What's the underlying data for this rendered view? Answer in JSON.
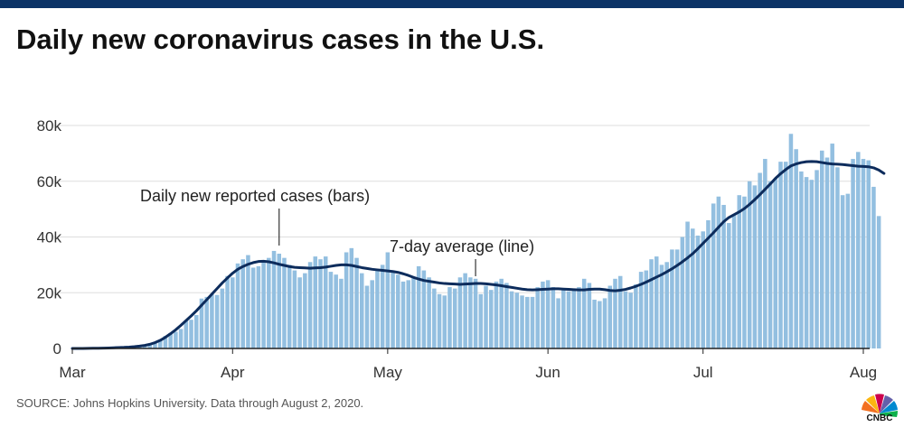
{
  "colors": {
    "brand_bar": "#0b3366",
    "bar": "#93bfe0",
    "line": "#0d2c5c",
    "grid": "#dddddd",
    "axis": "#222222"
  },
  "header": {
    "title": "Daily new coronavirus cases in the U.S."
  },
  "footer": {
    "source": "SOURCE: Johns Hopkins University. Data through August 2, 2020.",
    "logo_text": "CNBC"
  },
  "chart_data": {
    "type": "bar",
    "title": "Daily new coronavirus cases in the U.S.",
    "xlabel": "",
    "ylabel": "",
    "ylim": [
      0,
      80000
    ],
    "y_ticks": [
      0,
      20000,
      40000,
      60000,
      80000
    ],
    "y_tick_labels": [
      "0",
      "20k",
      "40k",
      "60k",
      "80k"
    ],
    "x_tick_labels": [
      {
        "label": "Mar",
        "day_index": 0
      },
      {
        "label": "Apr",
        "day_index": 31
      },
      {
        "label": "May",
        "day_index": 61
      },
      {
        "label": "Jun",
        "day_index": 92
      },
      {
        "label": "Jul",
        "day_index": 122
      },
      {
        "label": "Aug",
        "day_index": 153
      }
    ],
    "start_date": "2020-03-01",
    "end_date": "2020-08-02",
    "grid": true,
    "series": [
      {
        "name": "Daily new reported cases",
        "type": "bar",
        "start_day_index": 0,
        "values": [
          0,
          0,
          100,
          100,
          100,
          100,
          200,
          200,
          300,
          400,
          400,
          500,
          700,
          900,
          1200,
          1500,
          2200,
          2900,
          4500,
          5500,
          6000,
          7000,
          10000,
          10300,
          12000,
          17900,
          18500,
          19500,
          19200,
          21500,
          26000,
          25500,
          30500,
          32000,
          33500,
          29000,
          29500,
          31000,
          32500,
          35000,
          34000,
          32500,
          30000,
          28000,
          25500,
          27000,
          31000,
          33000,
          32000,
          33000,
          27500,
          26500,
          25000,
          34500,
          36000,
          32500,
          27000,
          22500,
          24500,
          28500,
          30000,
          34500,
          28000,
          26500,
          24000,
          24500,
          25500,
          29500,
          28000,
          25500,
          21500,
          19500,
          19000,
          22000,
          21500,
          25500,
          27000,
          25500,
          25000,
          19500,
          22500,
          21000,
          24000,
          25000,
          23500,
          20500,
          20000,
          19000,
          18500,
          18500,
          22000,
          24000,
          24500,
          22000,
          18000,
          21500,
          20500,
          21500,
          22000,
          25000,
          23500,
          17500,
          17000,
          18000,
          22500,
          25000,
          26000,
          20500,
          20000,
          23000,
          27500,
          28000,
          32000,
          33000,
          30000,
          31000,
          35500,
          35500,
          40000,
          45500,
          43000,
          40500,
          42000,
          46000,
          52000,
          54500,
          51500,
          45000,
          48000,
          55000,
          54500,
          60000,
          58500,
          63000,
          68000,
          60000,
          61000,
          67000,
          67000,
          77000,
          71500,
          63500,
          61500,
          60500,
          64000,
          71000,
          68500,
          73500,
          65000,
          55000,
          55500,
          68000,
          70500,
          68000,
          67500,
          58000,
          47500
        ]
      },
      {
        "name": "7-day average",
        "type": "line",
        "start_day_index": 0,
        "values": [
          0,
          0,
          20,
          40,
          70,
          100,
          130,
          180,
          250,
          320,
          390,
          500,
          650,
          850,
          1100,
          1500,
          2100,
          2900,
          4000,
          5300,
          6700,
          8300,
          10000,
          11700,
          13500,
          15500,
          17500,
          19500,
          21500,
          23500,
          25300,
          27000,
          28400,
          29400,
          30200,
          30800,
          31200,
          31300,
          31100,
          30700,
          30200,
          29800,
          29400,
          29100,
          29000,
          28900,
          28800,
          28900,
          29000,
          29200,
          29500,
          29800,
          30000,
          30000,
          29800,
          29400,
          29000,
          28700,
          28400,
          28200,
          28000,
          27800,
          27600,
          27300,
          26800,
          26200,
          25500,
          24900,
          24400,
          24100,
          23800,
          23500,
          23300,
          23200,
          23100,
          23000,
          23100,
          23200,
          23300,
          23300,
          23200,
          23000,
          22800,
          22500,
          22200,
          21900,
          21600,
          21300,
          21100,
          21000,
          21100,
          21200,
          21300,
          21400,
          21400,
          21300,
          21200,
          21100,
          21000,
          21000,
          21200,
          21300,
          21300,
          21100,
          20800,
          20700,
          20900,
          21200,
          21700,
          22300,
          23000,
          23800,
          24700,
          25600,
          26500,
          27500,
          28600,
          29800,
          31100,
          32500,
          34000,
          35800,
          37700,
          39600,
          41500,
          43500,
          45500,
          47000,
          48000,
          49000,
          50200,
          51700,
          53400,
          55200,
          57100,
          59000,
          61000,
          62700,
          64200,
          65500,
          66200,
          66700,
          67000,
          67100,
          67000,
          66700,
          66400,
          66200,
          66100,
          66000,
          65800,
          65600,
          65400,
          65300,
          65200,
          64800,
          64000,
          62800
        ]
      }
    ],
    "annotations": [
      {
        "text": "Daily new reported cases (bars)",
        "points_to": "bars",
        "day_index": 40
      },
      {
        "text": "7-day average (line)",
        "points_to": "line",
        "day_index": 78
      }
    ]
  }
}
